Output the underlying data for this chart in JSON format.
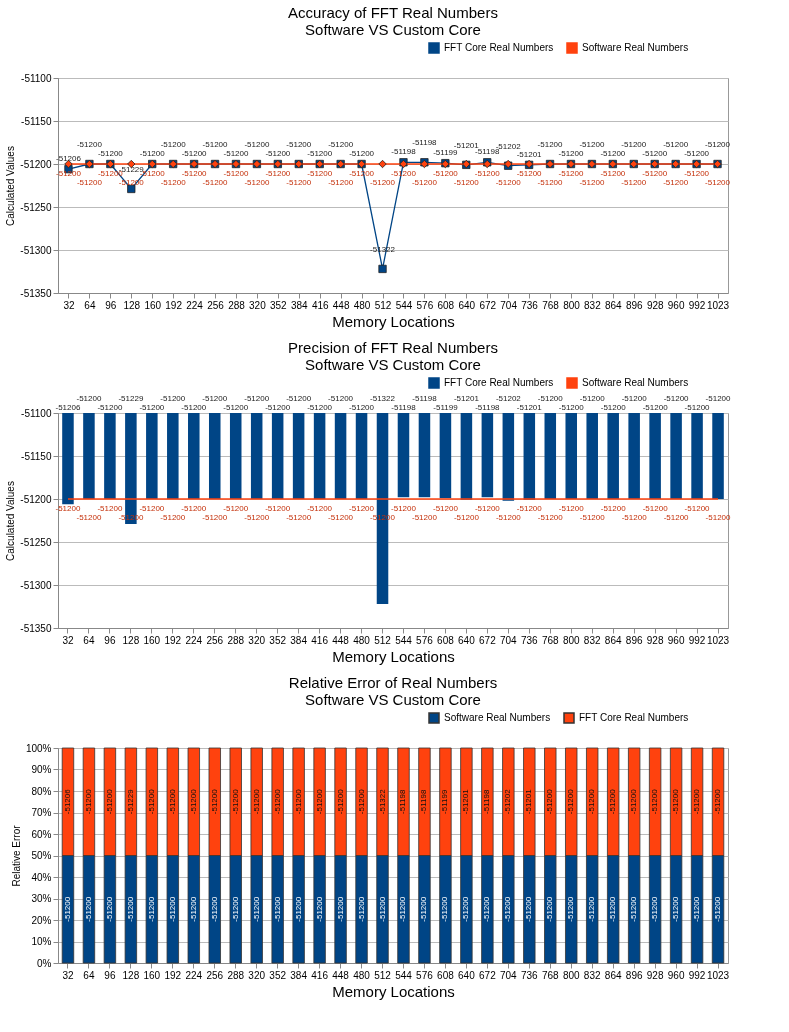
{
  "chart_data": [
    {
      "type": "line",
      "title": "Accuracy of FFT Real Numbers",
      "subtitle": "Software VS Custom Core",
      "xlabel": "Memory Locations",
      "ylabel": "Calculated Values",
      "categories": [
        "32",
        "64",
        "96",
        "128",
        "160",
        "192",
        "224",
        "256",
        "288",
        "320",
        "352",
        "384",
        "416",
        "448",
        "480",
        "512",
        "544",
        "576",
        "608",
        "640",
        "672",
        "704",
        "736",
        "768",
        "800",
        "832",
        "864",
        "896",
        "928",
        "960",
        "992",
        "1023"
      ],
      "series": [
        {
          "name": "FFT Core Real Numbers",
          "color": "#004586",
          "marker": "square",
          "values": [
            -51206,
            -51200,
            -51200,
            -51229,
            -51200,
            -51200,
            -51200,
            -51200,
            -51200,
            -51200,
            -51200,
            -51200,
            -51200,
            -51200,
            -51200,
            -51322,
            -51198,
            -51198,
            -51199,
            -51201,
            -51198,
            -51202,
            -51201,
            -51200,
            -51200,
            -51200,
            -51200,
            -51200,
            -51200,
            -51200,
            -51200,
            -51200
          ]
        },
        {
          "name": "Software Real Numbers",
          "color": "#ff420e",
          "marker": "diamond",
          "values": [
            -51200,
            -51200,
            -51200,
            -51200,
            -51200,
            -51200,
            -51200,
            -51200,
            -51200,
            -51200,
            -51200,
            -51200,
            -51200,
            -51200,
            -51200,
            -51200,
            -51200,
            -51200,
            -51200,
            -51200,
            -51200,
            -51200,
            -51200,
            -51200,
            -51200,
            -51200,
            -51200,
            -51200,
            -51200,
            -51200,
            -51200,
            -51200
          ]
        }
      ],
      "ylim": [
        -51350,
        -51100
      ],
      "yticks": [
        -51350,
        -51300,
        -51250,
        -51200,
        -51150,
        -51100
      ],
      "grid": "y",
      "legend": "top right",
      "data_labels": true
    },
    {
      "type": "bar",
      "title": "Precision of FFT Real Numbers",
      "subtitle": "Software VS Custom Core",
      "xlabel": "Memory Locations",
      "ylabel": "Calculated Values",
      "categories": [
        "32",
        "64",
        "96",
        "128",
        "160",
        "192",
        "224",
        "256",
        "288",
        "320",
        "352",
        "384",
        "416",
        "448",
        "480",
        "512",
        "544",
        "576",
        "608",
        "640",
        "672",
        "704",
        "736",
        "768",
        "800",
        "832",
        "864",
        "896",
        "928",
        "960",
        "992",
        "1023"
      ],
      "series": [
        {
          "name": "FFT Core Real Numbers",
          "color": "#004586",
          "values": [
            -51206,
            -51200,
            -51200,
            -51229,
            -51200,
            -51200,
            -51200,
            -51200,
            -51200,
            -51200,
            -51200,
            -51200,
            -51200,
            -51200,
            -51200,
            -51322,
            -51198,
            -51198,
            -51199,
            -51201,
            -51198,
            -51202,
            -51201,
            -51200,
            -51200,
            -51200,
            -51200,
            -51200,
            -51200,
            -51200,
            -51200,
            -51200
          ]
        },
        {
          "name": "Software Real Numbers",
          "type": "line",
          "color": "#ff420e",
          "values": [
            -51200,
            -51200,
            -51200,
            -51200,
            -51200,
            -51200,
            -51200,
            -51200,
            -51200,
            -51200,
            -51200,
            -51200,
            -51200,
            -51200,
            -51200,
            -51200,
            -51200,
            -51200,
            -51200,
            -51200,
            -51200,
            -51200,
            -51200,
            -51200,
            -51200,
            -51200,
            -51200,
            -51200,
            -51200,
            -51200,
            -51200,
            -51200
          ]
        }
      ],
      "ylim": [
        -51350,
        -51100
      ],
      "yticks": [
        -51350,
        -51300,
        -51250,
        -51200,
        -51150,
        -51100
      ],
      "grid": "y",
      "legend": "top right",
      "data_labels": true
    },
    {
      "type": "bar",
      "stacked": true,
      "title": "Relative Error of Real Numbers",
      "subtitle": "Software VS Custom Core",
      "xlabel": "Memory Locations",
      "ylabel": "Relative Error",
      "categories": [
        "32",
        "64",
        "96",
        "128",
        "160",
        "192",
        "224",
        "256",
        "288",
        "320",
        "352",
        "384",
        "416",
        "448",
        "480",
        "512",
        "544",
        "576",
        "608",
        "640",
        "672",
        "704",
        "736",
        "768",
        "800",
        "832",
        "864",
        "896",
        "928",
        "960",
        "992",
        "1023"
      ],
      "series": [
        {
          "name": "Software Real Numbers",
          "color": "#004586",
          "values": [
            50,
            50,
            50,
            50,
            50,
            50,
            50,
            50,
            50,
            50,
            50,
            50,
            50,
            50,
            50,
            50,
            50,
            50,
            50,
            50,
            50,
            50,
            50,
            50,
            50,
            50,
            50,
            50,
            50,
            50,
            50,
            50
          ]
        },
        {
          "name": "FFT Core Real Numbers",
          "color": "#ff420e",
          "values": [
            50,
            50,
            50,
            50,
            50,
            50,
            50,
            50,
            50,
            50,
            50,
            50,
            50,
            50,
            50,
            50,
            50,
            50,
            50,
            50,
            50,
            50,
            50,
            50,
            50,
            50,
            50,
            50,
            50,
            50,
            50,
            50
          ]
        }
      ],
      "annotations": [
        "-51200",
        "-51200",
        "-51200",
        "-51200",
        "-51200",
        "-51200",
        "-51200",
        "-51200",
        "-51200",
        "-51200",
        "-51200",
        "-51200",
        "-51200",
        "-51200",
        "-51200",
        "-51200",
        "-51200",
        "-51200",
        "-51200",
        "-51200",
        "-51200",
        "-51200",
        "-51200",
        "-51200",
        "-51200",
        "-51200",
        "-51200",
        "-51200",
        "-51200",
        "-51200",
        "-51200",
        "-51200",
        "-51206",
        "-51200",
        "-51200",
        "-51229",
        "-51200",
        "-51200",
        "-51200",
        "-51200",
        "-51200",
        "-51200",
        "-51200",
        "-51200",
        "-51200",
        "-51200",
        "-51200",
        "-51322",
        "-51198",
        "-51198",
        "-51199",
        "-51201",
        "-51198",
        "-51202",
        "-51201",
        "-51200",
        "-51200",
        "-51200",
        "-51200",
        "-51200",
        "-51200",
        "-51200",
        "-51200",
        "-51200"
      ],
      "ylim": [
        0,
        100
      ],
      "yticks": [
        {
          "value": 0,
          "label": "0%"
        },
        {
          "value": 10,
          "label": "10%"
        },
        {
          "value": 20,
          "label": "20%"
        },
        {
          "value": 30,
          "label": "30%"
        },
        {
          "value": 40,
          "label": "40%"
        },
        {
          "value": 50,
          "label": "50%"
        },
        {
          "value": 60,
          "label": "60%"
        },
        {
          "value": 70,
          "label": "70%"
        },
        {
          "value": 80,
          "label": "80%"
        },
        {
          "value": 90,
          "label": "90%"
        },
        {
          "value": 100,
          "label": "100%"
        }
      ],
      "grid": "y",
      "legend": "top right"
    }
  ]
}
